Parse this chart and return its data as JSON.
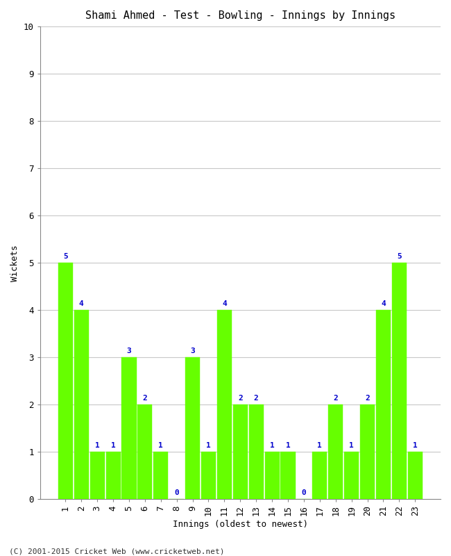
{
  "title": "Shami Ahmed - Test - Bowling - Innings by Innings",
  "xlabel": "Innings (oldest to newest)",
  "ylabel": "Wickets",
  "categories": [
    "1",
    "2",
    "3",
    "4",
    "5",
    "6",
    "7",
    "8",
    "9",
    "10",
    "11",
    "12",
    "13",
    "14",
    "15",
    "16",
    "17",
    "18",
    "19",
    "20",
    "21",
    "22",
    "23"
  ],
  "values": [
    5,
    4,
    1,
    1,
    3,
    2,
    1,
    0,
    3,
    1,
    4,
    2,
    2,
    1,
    1,
    0,
    1,
    2,
    1,
    2,
    4,
    5,
    1
  ],
  "bar_color": "#66ff00",
  "bar_edge_color": "#66ff00",
  "label_color": "#0000cc",
  "ylim": [
    0,
    10
  ],
  "yticks": [
    0,
    1,
    2,
    3,
    4,
    5,
    6,
    7,
    8,
    9,
    10
  ],
  "grid_color": "#c8c8c8",
  "bg_color": "#ffffff",
  "title_fontsize": 11,
  "axis_label_fontsize": 9,
  "tick_fontsize": 9,
  "bar_label_fontsize": 8,
  "bar_width": 0.92,
  "footer": "(C) 2001-2015 Cricket Web (www.cricketweb.net)"
}
